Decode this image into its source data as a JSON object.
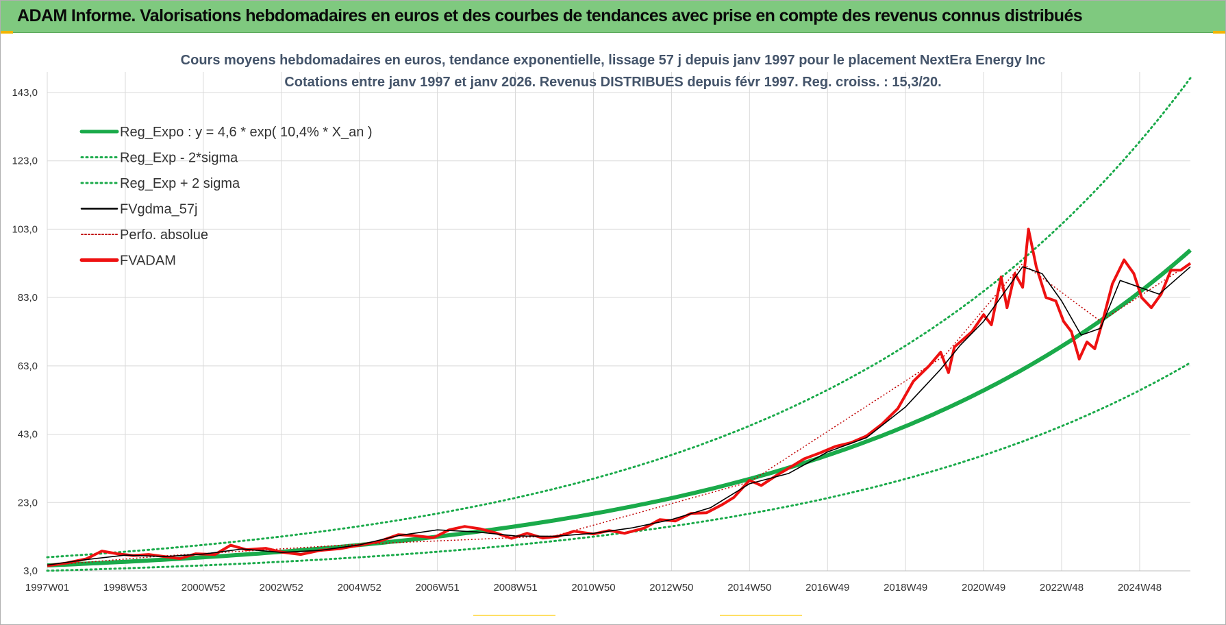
{
  "banner": {
    "title": "ADAM Informe. Valorisations hebdomadaires en euros et des courbes de tendances avec prise en compte des revenus connus distribués"
  },
  "colors": {
    "banner_bg": "#7fc97f",
    "reg_green": "#1aaa4a",
    "band_green": "#1aaa4a",
    "fvgdma": "#000000",
    "perfo": "#c00000",
    "fvadam": "#ee1111"
  },
  "chart_data": {
    "type": "line",
    "title": "Cours moyens hebdomadaires en euros, tendance exponentielle, lissage 57 j depuis janv 1997 pour le placement NextEra Energy Inc",
    "subtitle": "Cotations entre janv 1997 et janv 2026. Revenus DISTRIBUES depuis févr 1997. Reg. croiss. : 15,3/20.",
    "xlabel": "",
    "ylabel": "",
    "xlim": [
      1997.0,
      2026.3
    ],
    "ylim": [
      3.0,
      143.0
    ],
    "y_ticks": [
      3.0,
      23.0,
      43.0,
      63.0,
      83.0,
      103.0,
      123.0,
      143.0
    ],
    "y_tick_labels": [
      "3,0",
      "23,0",
      "43,0",
      "63,0",
      "83,0",
      "103,0",
      "123,0",
      "143,0"
    ],
    "x_ticks": [
      1997.0,
      1999.0,
      2001.0,
      2003.0,
      2005.0,
      2007.0,
      2009.0,
      2011.0,
      2013.0,
      2015.0,
      2017.0,
      2019.0,
      2021.0,
      2023.0,
      2025.0
    ],
    "x_tick_labels": [
      "1997W01",
      "1998W53",
      "2000W52",
      "2002W52",
      "2004W52",
      "2006W51",
      "2008W51",
      "2010W50",
      "2012W50",
      "2014W50",
      "2016W49",
      "2018W49",
      "2020W49",
      "2022W48",
      "2024W48"
    ],
    "legend": {
      "position": "top-left",
      "entries": [
        {
          "name": "Reg_Expo : y = 4,6 * exp( 10,4% *  X_an )",
          "style": "solid-thick",
          "color": "#1aaa4a"
        },
        {
          "name": "Reg_Exp - 2*sigma",
          "style": "dotted",
          "color": "#1aaa4a"
        },
        {
          "name": "Reg_Exp + 2 sigma",
          "style": "dotted",
          "color": "#1aaa4a"
        },
        {
          "name": "FVgdma_57j",
          "style": "solid-thin",
          "color": "#000000"
        },
        {
          "name": "Perfo. absolue",
          "style": "dotted-thin",
          "color": "#c00000"
        },
        {
          "name": "FVADAM",
          "style": "solid-thick",
          "color": "#ee1111"
        }
      ]
    },
    "regression": {
      "a": 4.6,
      "b": 0.104,
      "x0": 1997.0,
      "minus_factor": 0.66,
      "plus_factor": 1.52
    },
    "series": [
      {
        "name": "FVADAM",
        "x": [
          1997.0,
          1997.5,
          1998.0,
          1998.4,
          1998.8,
          1999.2,
          1999.6,
          2000.0,
          2000.4,
          2000.8,
          2001.3,
          2001.7,
          2002.1,
          2002.6,
          2003.0,
          2003.5,
          2004.0,
          2004.5,
          2005.0,
          2005.5,
          2006.0,
          2006.4,
          2006.9,
          2007.3,
          2007.7,
          2008.1,
          2008.5,
          2008.9,
          2009.3,
          2009.7,
          2010.1,
          2010.5,
          2011.0,
          2011.4,
          2011.8,
          2012.3,
          2012.7,
          2013.1,
          2013.5,
          2013.9,
          2014.3,
          2014.6,
          2015.0,
          2015.3,
          2015.7,
          2016.0,
          2016.4,
          2016.8,
          2017.2,
          2017.6,
          2018.0,
          2018.4,
          2018.8,
          2019.2,
          2019.6,
          2019.9,
          2020.1,
          2020.25,
          2020.45,
          2020.7,
          2021.0,
          2021.2,
          2021.45,
          2021.6,
          2021.8,
          2022.0,
          2022.15,
          2022.35,
          2022.6,
          2022.85,
          2023.05,
          2023.25,
          2023.45,
          2023.65,
          2023.85,
          2024.05,
          2024.3,
          2024.6,
          2024.85,
          2025.05,
          2025.3,
          2025.55,
          2025.8,
          2026.05,
          2026.3
        ],
        "values": [
          4.5,
          5.3,
          6.5,
          8.8,
          8.0,
          7.5,
          7.8,
          7.2,
          6.6,
          8.0,
          7.8,
          10.5,
          9.2,
          9.6,
          8.5,
          7.8,
          9.0,
          9.5,
          10.5,
          11.6,
          13.6,
          13.3,
          12.7,
          15.0,
          16.0,
          15.3,
          14.1,
          12.5,
          14.0,
          12.6,
          13.1,
          14.6,
          13.8,
          14.8,
          14.0,
          15.5,
          18.0,
          17.6,
          19.8,
          20.0,
          22.4,
          24.5,
          29.5,
          28.0,
          31.0,
          33.0,
          35.8,
          37.5,
          39.4,
          40.5,
          42.5,
          46.0,
          50.5,
          58.5,
          63.0,
          67.0,
          61.0,
          68.5,
          70.5,
          73.0,
          78.0,
          75.0,
          89.0,
          80.0,
          90.0,
          86.0,
          103.0,
          92.0,
          83.0,
          82.0,
          76.0,
          73.0,
          65.0,
          70.0,
          68.0,
          76.0,
          87.0,
          94.0,
          90.0,
          83.0,
          80.0,
          84.0,
          91.0,
          91.0,
          93.0
        ]
      },
      {
        "name": "FVgdma_57j",
        "x": [
          1997.0,
          1998.0,
          1999.0,
          2000.0,
          2001.0,
          2002.0,
          2003.0,
          2004.0,
          2005.0,
          2006.0,
          2007.0,
          2008.0,
          2009.0,
          2010.0,
          2011.0,
          2012.0,
          2013.0,
          2014.0,
          2015.0,
          2016.0,
          2017.0,
          2018.0,
          2019.0,
          2019.9,
          2020.4,
          2021.0,
          2021.5,
          2022.0,
          2022.5,
          2023.0,
          2023.5,
          2024.0,
          2024.5,
          2025.0,
          2025.5,
          2026.0,
          2026.3
        ],
        "values": [
          4.7,
          6.3,
          7.6,
          7.2,
          7.9,
          9.4,
          8.4,
          9.0,
          10.6,
          13.3,
          15.0,
          14.4,
          13.2,
          13.1,
          14.0,
          15.6,
          18.0,
          21.5,
          28.5,
          31.5,
          37.8,
          42.0,
          51.0,
          62.0,
          69.0,
          76.0,
          84.0,
          92.0,
          90.0,
          82.0,
          72.0,
          74.0,
          88.0,
          86.0,
          84.0,
          89.0,
          92.0
        ]
      },
      {
        "name": "Perfo. absolue",
        "x": [
          1997.0,
          2000.0,
          2005.0,
          2010.0,
          2015.0,
          2020.0,
          2022.0,
          2024.0,
          2026.3
        ],
        "values": [
          4.6,
          7.4,
          10.8,
          13.2,
          29.0,
          66.0,
          93.0,
          76.0,
          93.0
        ]
      }
    ]
  }
}
